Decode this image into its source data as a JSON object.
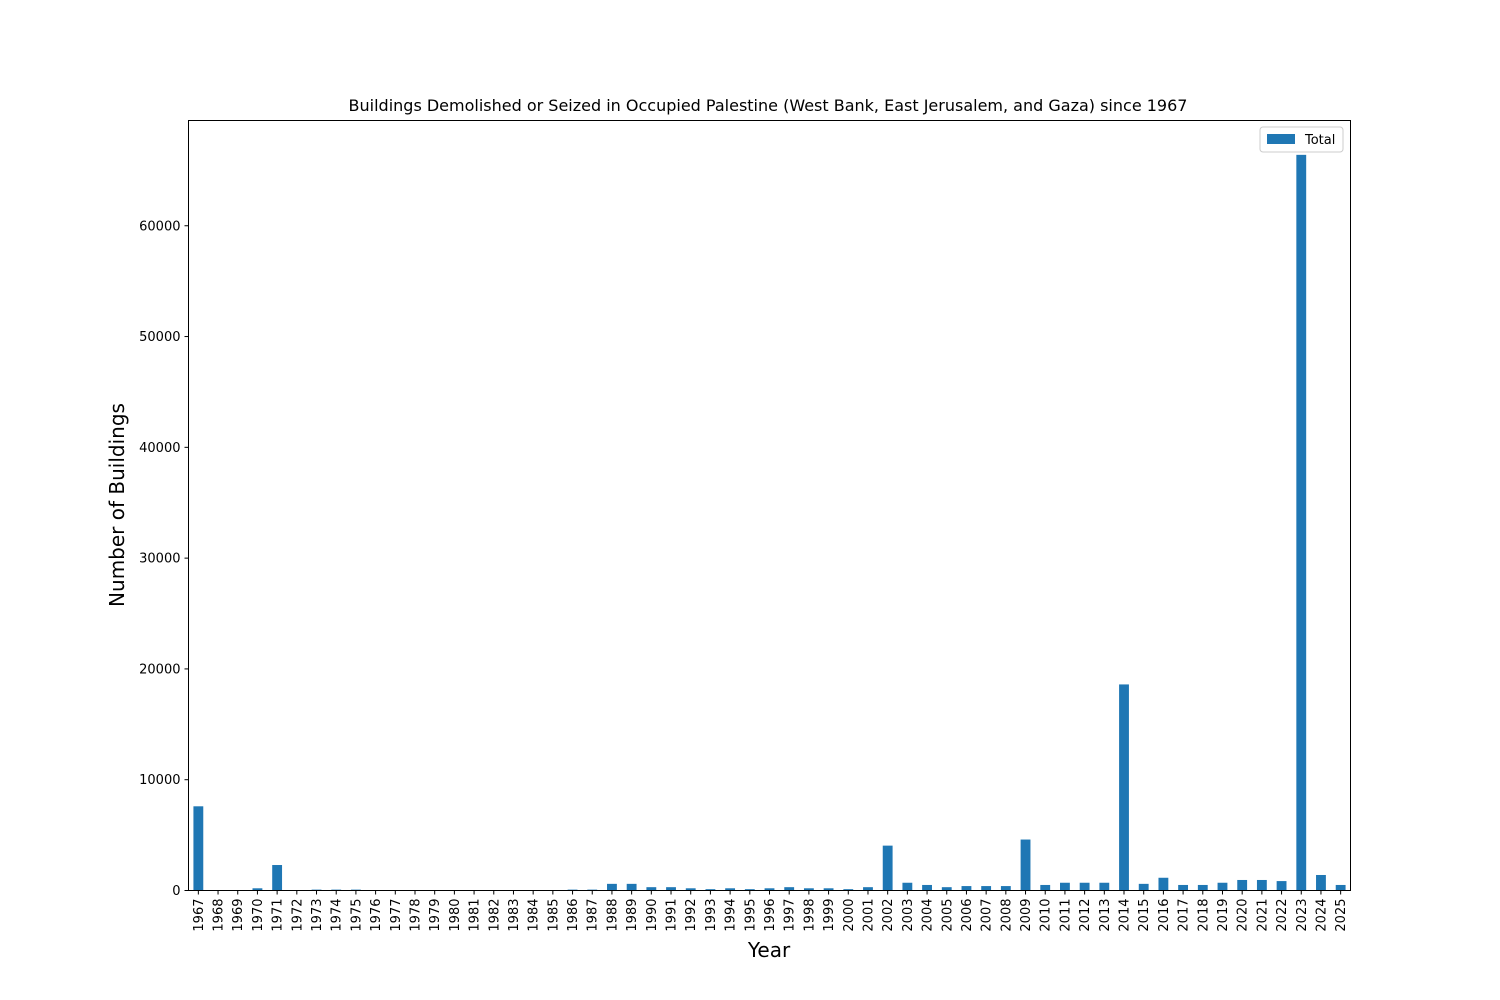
{
  "chart_data": {
    "type": "bar",
    "title": "Buildings Demolished or Seized in Occupied Palestine (West Bank, East Jerusalem, and Gaza) since 1967",
    "xlabel": "Year",
    "ylabel": "Number of Buildings",
    "ylim": [
      0,
      69500
    ],
    "yticks": [
      0,
      10000,
      20000,
      30000,
      40000,
      50000,
      60000
    ],
    "grid": false,
    "legend": {
      "position": "top-right",
      "entries": [
        "Total"
      ]
    },
    "color": "#1f77b4",
    "categories": [
      "1967",
      "1968",
      "1969",
      "1970",
      "1971",
      "1972",
      "1973",
      "1974",
      "1975",
      "1976",
      "1977",
      "1978",
      "1979",
      "1980",
      "1981",
      "1982",
      "1983",
      "1984",
      "1985",
      "1986",
      "1987",
      "1988",
      "1989",
      "1990",
      "1991",
      "1992",
      "1993",
      "1994",
      "1995",
      "1996",
      "1997",
      "1998",
      "1999",
      "2000",
      "2001",
      "2002",
      "2003",
      "2004",
      "2005",
      "2006",
      "2007",
      "2008",
      "2009",
      "2010",
      "2011",
      "2012",
      "2013",
      "2014",
      "2015",
      "2016",
      "2017",
      "2018",
      "2019",
      "2020",
      "2021",
      "2022",
      "2023",
      "2024",
      "2025"
    ],
    "series": [
      {
        "name": "Total",
        "values": [
          7600,
          20,
          20,
          200,
          2300,
          20,
          80,
          80,
          80,
          20,
          20,
          20,
          20,
          20,
          20,
          20,
          20,
          20,
          20,
          80,
          80,
          600,
          600,
          300,
          300,
          200,
          120,
          200,
          120,
          200,
          300,
          200,
          200,
          120,
          300,
          4050,
          700,
          500,
          300,
          400,
          400,
          400,
          4600,
          500,
          700,
          700,
          700,
          18600,
          600,
          1150,
          500,
          500,
          700,
          950,
          950,
          850,
          66400,
          1400,
          500
        ]
      }
    ]
  }
}
